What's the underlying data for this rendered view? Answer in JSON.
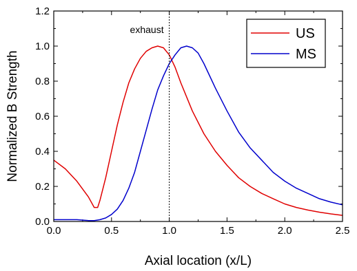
{
  "chart_data": {
    "type": "line",
    "title": "",
    "xlabel": "Axial location (x/L)",
    "ylabel": "Normalized B Strength",
    "xlim": [
      0,
      2.5
    ],
    "ylim": [
      0,
      1.2
    ],
    "x_ticks": [
      "0.0",
      "0.5",
      "1.0",
      "1.5",
      "2.0",
      "2.5"
    ],
    "y_ticks": [
      "0.0",
      "0.2",
      "0.4",
      "0.6",
      "0.8",
      "1.0",
      "1.2"
    ],
    "grid": false,
    "legend_position": "top-right",
    "annotations": [
      {
        "text": "exhaust",
        "x": 1.0,
        "style": "dotted vertical line"
      }
    ],
    "series": [
      {
        "name": "US",
        "color": "#e00000",
        "x": [
          0.0,
          0.1,
          0.2,
          0.3,
          0.35,
          0.38,
          0.4,
          0.45,
          0.5,
          0.55,
          0.6,
          0.65,
          0.7,
          0.75,
          0.8,
          0.85,
          0.9,
          0.95,
          1.0,
          1.05,
          1.1,
          1.2,
          1.3,
          1.4,
          1.5,
          1.6,
          1.7,
          1.8,
          1.9,
          2.0,
          2.1,
          2.2,
          2.3,
          2.4,
          2.5
        ],
        "y": [
          0.35,
          0.3,
          0.23,
          0.14,
          0.08,
          0.08,
          0.12,
          0.25,
          0.4,
          0.55,
          0.68,
          0.79,
          0.87,
          0.93,
          0.97,
          0.99,
          1.0,
          0.99,
          0.95,
          0.88,
          0.79,
          0.63,
          0.5,
          0.4,
          0.32,
          0.25,
          0.2,
          0.16,
          0.13,
          0.1,
          0.08,
          0.065,
          0.053,
          0.043,
          0.035
        ]
      },
      {
        "name": "MS",
        "color": "#0000cc",
        "x": [
          0.0,
          0.1,
          0.2,
          0.3,
          0.35,
          0.4,
          0.45,
          0.5,
          0.55,
          0.6,
          0.65,
          0.7,
          0.75,
          0.8,
          0.85,
          0.9,
          0.95,
          1.0,
          1.05,
          1.1,
          1.15,
          1.2,
          1.25,
          1.3,
          1.4,
          1.5,
          1.6,
          1.7,
          1.8,
          1.9,
          2.0,
          2.1,
          2.2,
          2.3,
          2.4,
          2.5
        ],
        "y": [
          0.01,
          0.01,
          0.01,
          0.005,
          0.005,
          0.01,
          0.02,
          0.04,
          0.07,
          0.12,
          0.19,
          0.28,
          0.4,
          0.52,
          0.64,
          0.75,
          0.83,
          0.9,
          0.95,
          0.99,
          1.0,
          0.99,
          0.96,
          0.9,
          0.76,
          0.63,
          0.51,
          0.42,
          0.35,
          0.28,
          0.23,
          0.19,
          0.16,
          0.13,
          0.11,
          0.095
        ]
      }
    ]
  }
}
